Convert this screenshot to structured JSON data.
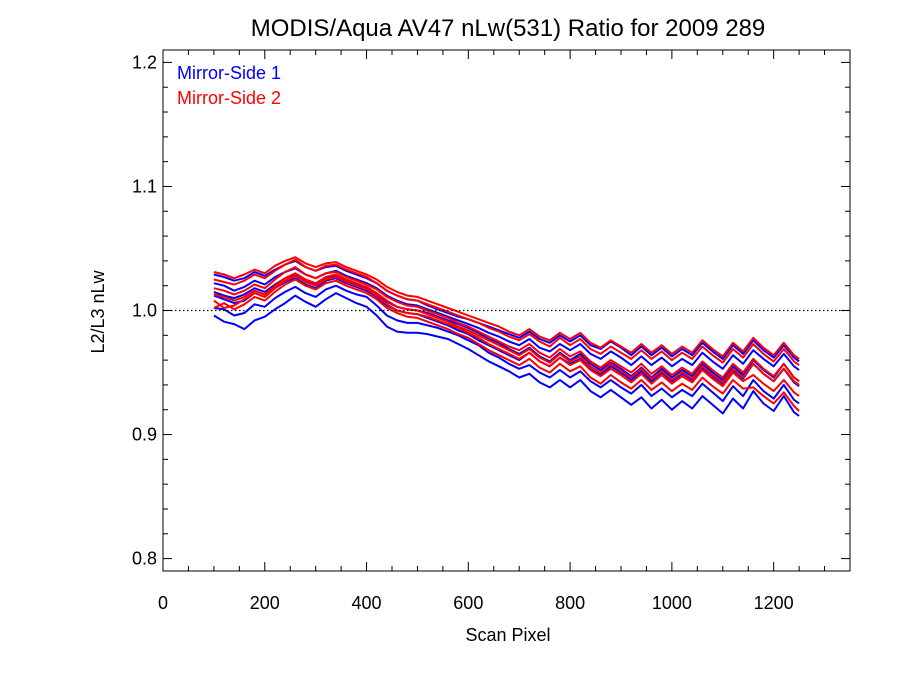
{
  "chart_data": {
    "type": "line",
    "title": "MODIS/Aqua AV47 nLw(531) Ratio for 2009 289",
    "xlabel": "Scan Pixel",
    "ylabel": "L2/L3 nLw",
    "xlim": [
      0,
      1350
    ],
    "ylim": [
      0.79,
      1.21
    ],
    "xticks": [
      0,
      200,
      400,
      600,
      800,
      1000,
      1200
    ],
    "xtick_labels": [
      "0",
      "200",
      "400",
      "600",
      "800",
      "1000",
      "1200"
    ],
    "yticks": [
      0.8,
      0.9,
      1.0,
      1.1,
      1.2
    ],
    "ytick_labels": [
      "0.8",
      "0.9",
      "1.0",
      "1.1",
      "1.2"
    ],
    "reference_line": 1.0,
    "grid": false,
    "legend_position": "top-left",
    "legend": [
      {
        "label": "Mirror-Side 1",
        "color": "#0000ff"
      },
      {
        "label": "Mirror-Side 2",
        "color": "#ff0000"
      }
    ],
    "x": [
      100,
      120,
      140,
      160,
      180,
      200,
      220,
      240,
      260,
      280,
      300,
      320,
      340,
      360,
      380,
      400,
      420,
      440,
      460,
      480,
      500,
      520,
      540,
      560,
      580,
      600,
      620,
      640,
      660,
      680,
      700,
      720,
      740,
      760,
      780,
      800,
      820,
      840,
      860,
      880,
      900,
      920,
      940,
      960,
      980,
      1000,
      1020,
      1040,
      1060,
      1080,
      1100,
      1120,
      1140,
      1160,
      1180,
      1200,
      1220,
      1240,
      1250
    ],
    "series": [
      {
        "group": "Mirror-Side 1",
        "color": "#0000ff",
        "values": [
          0.996,
          0.991,
          0.989,
          0.985,
          0.992,
          0.995,
          1.001,
          1.006,
          1.012,
          1.007,
          1.003,
          1.009,
          1.014,
          1.01,
          1.006,
          1.003,
          0.996,
          0.987,
          0.983,
          0.982,
          0.982,
          0.981,
          0.979,
          0.977,
          0.973,
          0.969,
          0.964,
          0.959,
          0.955,
          0.951,
          0.946,
          0.949,
          0.942,
          0.938,
          0.944,
          0.938,
          0.944,
          0.935,
          0.93,
          0.936,
          0.93,
          0.924,
          0.93,
          0.921,
          0.928,
          0.92,
          0.927,
          0.921,
          0.931,
          0.924,
          0.917,
          0.929,
          0.921,
          0.935,
          0.925,
          0.919,
          0.931,
          0.918,
          0.915
        ]
      },
      {
        "group": "Mirror-Side 1",
        "color": "#0000ff",
        "values": [
          1.002,
          1.001,
          0.996,
          0.998,
          1.005,
          1.003,
          1.01,
          1.015,
          1.019,
          1.014,
          1.011,
          1.017,
          1.02,
          1.016,
          1.013,
          1.011,
          1.004,
          0.996,
          0.992,
          0.99,
          0.99,
          0.988,
          0.986,
          0.983,
          0.98,
          0.976,
          0.972,
          0.966,
          0.962,
          0.957,
          0.953,
          0.956,
          0.95,
          0.946,
          0.952,
          0.946,
          0.951,
          0.943,
          0.938,
          0.944,
          0.938,
          0.933,
          0.94,
          0.931,
          0.937,
          0.93,
          0.936,
          0.931,
          0.941,
          0.934,
          0.927,
          0.939,
          0.931,
          0.944,
          0.935,
          0.929,
          0.94,
          0.928,
          0.925
        ]
      },
      {
        "group": "Mirror-Side 1",
        "color": "#0000ff",
        "values": [
          1.015,
          1.012,
          1.01,
          1.013,
          1.018,
          1.015,
          1.021,
          1.026,
          1.029,
          1.024,
          1.021,
          1.026,
          1.028,
          1.024,
          1.021,
          1.018,
          1.013,
          1.007,
          1.003,
          1.001,
          1.0,
          0.998,
          0.995,
          0.992,
          0.989,
          0.986,
          0.982,
          0.977,
          0.974,
          0.969,
          0.965,
          0.97,
          0.963,
          0.959,
          0.966,
          0.96,
          0.965,
          0.957,
          0.952,
          0.958,
          0.953,
          0.947,
          0.954,
          0.946,
          0.953,
          0.946,
          0.952,
          0.947,
          0.957,
          0.95,
          0.944,
          0.955,
          0.948,
          0.96,
          0.952,
          0.946,
          0.957,
          0.946,
          0.943
        ]
      },
      {
        "group": "Mirror-Side 1",
        "color": "#0000ff",
        "values": [
          1.022,
          1.02,
          1.016,
          1.019,
          1.024,
          1.021,
          1.027,
          1.031,
          1.034,
          1.029,
          1.026,
          1.03,
          1.032,
          1.028,
          1.025,
          1.022,
          1.018,
          1.012,
          1.008,
          1.005,
          1.004,
          1.001,
          0.998,
          0.995,
          0.992,
          0.989,
          0.986,
          0.982,
          0.979,
          0.975,
          0.972,
          0.977,
          0.97,
          0.967,
          0.973,
          0.968,
          0.973,
          0.965,
          0.961,
          0.967,
          0.962,
          0.956,
          0.963,
          0.956,
          0.962,
          0.955,
          0.961,
          0.956,
          0.966,
          0.959,
          0.953,
          0.964,
          0.957,
          0.968,
          0.961,
          0.955,
          0.965,
          0.955,
          0.952
        ]
      },
      {
        "group": "Mirror-Side 1",
        "color": "#0000ff",
        "values": [
          1.029,
          1.027,
          1.024,
          1.026,
          1.031,
          1.028,
          1.033,
          1.037,
          1.04,
          1.035,
          1.032,
          1.035,
          1.036,
          1.032,
          1.029,
          1.026,
          1.022,
          1.016,
          1.012,
          1.009,
          1.008,
          1.004,
          1.001,
          0.998,
          0.995,
          0.993,
          0.99,
          0.987,
          0.984,
          0.981,
          0.978,
          0.983,
          0.977,
          0.974,
          0.98,
          0.975,
          0.98,
          0.972,
          0.969,
          0.975,
          0.97,
          0.964,
          0.971,
          0.964,
          0.97,
          0.963,
          0.969,
          0.964,
          0.974,
          0.967,
          0.961,
          0.972,
          0.965,
          0.976,
          0.968,
          0.962,
          0.972,
          0.962,
          0.959
        ]
      },
      {
        "group": "Mirror-Side 1",
        "color": "#0000ff",
        "values": [
          1.012,
          1.009,
          1.006,
          1.008,
          1.014,
          1.011,
          1.018,
          1.023,
          1.026,
          1.021,
          1.018,
          1.024,
          1.026,
          1.022,
          1.019,
          1.016,
          1.011,
          1.004,
          1.0,
          0.998,
          0.997,
          0.994,
          0.991,
          0.988,
          0.984,
          0.981,
          0.976,
          0.972,
          0.968,
          0.964,
          0.96,
          0.966,
          0.959,
          0.955,
          0.962,
          0.957,
          0.961,
          0.953,
          0.948,
          0.955,
          0.95,
          0.944,
          0.951,
          0.943,
          0.95,
          0.943,
          0.949,
          0.944,
          0.954,
          0.947,
          0.941,
          0.952,
          0.945,
          0.957,
          0.949,
          0.943,
          0.953,
          0.942,
          0.939
        ]
      },
      {
        "group": "Mirror-Side 2",
        "color": "#ff0000",
        "values": [
          1.008,
          1.002,
          1.004,
          1.009,
          1.014,
          1.011,
          1.018,
          1.024,
          1.028,
          1.023,
          1.02,
          1.025,
          1.027,
          1.023,
          1.02,
          1.017,
          1.012,
          1.005,
          1.0,
          0.998,
          0.997,
          0.995,
          0.992,
          0.989,
          0.986,
          0.982,
          0.978,
          0.973,
          0.969,
          0.965,
          0.961,
          0.966,
          0.959,
          0.955,
          0.962,
          0.956,
          0.96,
          0.952,
          0.947,
          0.953,
          0.948,
          0.942,
          0.949,
          0.941,
          0.948,
          0.941,
          0.947,
          0.942,
          0.952,
          0.945,
          0.939,
          0.95,
          0.943,
          0.948,
          0.941,
          0.935,
          0.944,
          0.934,
          0.931
        ]
      },
      {
        "group": "Mirror-Side 2",
        "color": "#ff0000",
        "values": [
          1.018,
          1.016,
          1.013,
          1.016,
          1.021,
          1.018,
          1.025,
          1.031,
          1.035,
          1.029,
          1.026,
          1.03,
          1.031,
          1.027,
          1.024,
          1.021,
          1.017,
          1.011,
          1.007,
          1.004,
          1.003,
          1.0,
          0.997,
          0.994,
          0.99,
          0.987,
          0.983,
          0.979,
          0.975,
          0.971,
          0.968,
          0.973,
          0.966,
          0.962,
          0.969,
          0.963,
          0.967,
          0.959,
          0.954,
          0.96,
          0.955,
          0.95,
          0.957,
          0.949,
          0.955,
          0.948,
          0.954,
          0.949,
          0.959,
          0.952,
          0.946,
          0.957,
          0.95,
          0.961,
          0.953,
          0.947,
          0.957,
          0.946,
          0.943
        ]
      },
      {
        "group": "Mirror-Side 2",
        "color": "#ff0000",
        "values": [
          1.025,
          1.023,
          1.021,
          1.024,
          1.029,
          1.026,
          1.032,
          1.037,
          1.041,
          1.035,
          1.032,
          1.036,
          1.037,
          1.033,
          1.03,
          1.027,
          1.022,
          1.016,
          1.012,
          1.009,
          1.008,
          1.005,
          1.002,
          0.999,
          0.996,
          0.993,
          0.99,
          0.986,
          0.983,
          0.979,
          0.976,
          0.981,
          0.975,
          0.971,
          0.978,
          0.972,
          0.977,
          0.969,
          0.965,
          0.971,
          0.966,
          0.961,
          0.968,
          0.961,
          0.967,
          0.96,
          0.966,
          0.961,
          0.971,
          0.964,
          0.958,
          0.969,
          0.962,
          0.973,
          0.965,
          0.959,
          0.969,
          0.959,
          0.956
        ]
      },
      {
        "group": "Mirror-Side 2",
        "color": "#ff0000",
        "values": [
          1.031,
          1.029,
          1.026,
          1.029,
          1.033,
          1.03,
          1.036,
          1.04,
          1.043,
          1.038,
          1.035,
          1.038,
          1.039,
          1.035,
          1.032,
          1.029,
          1.025,
          1.019,
          1.015,
          1.012,
          1.011,
          1.008,
          1.005,
          1.002,
          0.999,
          0.996,
          0.993,
          0.99,
          0.987,
          0.983,
          0.98,
          0.985,
          0.979,
          0.976,
          0.982,
          0.977,
          0.982,
          0.974,
          0.97,
          0.976,
          0.971,
          0.966,
          0.973,
          0.966,
          0.972,
          0.965,
          0.971,
          0.966,
          0.976,
          0.969,
          0.963,
          0.974,
          0.967,
          0.978,
          0.97,
          0.964,
          0.974,
          0.964,
          0.961
        ]
      },
      {
        "group": "Mirror-Side 2",
        "color": "#ff0000",
        "values": [
          1.013,
          1.011,
          1.008,
          1.011,
          1.016,
          1.013,
          1.02,
          1.026,
          1.03,
          1.025,
          1.022,
          1.027,
          1.029,
          1.025,
          1.022,
          1.019,
          1.014,
          1.008,
          1.003,
          1.001,
          1.0,
          0.997,
          0.994,
          0.991,
          0.987,
          0.984,
          0.98,
          0.976,
          0.972,
          0.968,
          0.964,
          0.969,
          0.962,
          0.958,
          0.965,
          0.959,
          0.963,
          0.955,
          0.95,
          0.957,
          0.951,
          0.946,
          0.953,
          0.945,
          0.951,
          0.944,
          0.95,
          0.945,
          0.955,
          0.948,
          0.942,
          0.953,
          0.946,
          0.957,
          0.949,
          0.943,
          0.953,
          0.943,
          0.94
        ]
      },
      {
        "group": "Mirror-Side 2",
        "color": "#ff0000",
        "values": [
          1.002,
          1.006,
          1.001,
          1.005,
          1.011,
          1.008,
          1.015,
          1.021,
          1.025,
          1.02,
          1.017,
          1.022,
          1.024,
          1.02,
          1.017,
          1.014,
          1.009,
          1.002,
          0.998,
          0.995,
          0.994,
          0.991,
          0.988,
          0.985,
          0.981,
          0.978,
          0.973,
          0.968,
          0.964,
          0.96,
          0.956,
          0.961,
          0.954,
          0.95,
          0.957,
          0.951,
          0.955,
          0.946,
          0.941,
          0.948,
          0.942,
          0.937,
          0.944,
          0.936,
          0.942,
          0.935,
          0.941,
          0.936,
          0.946,
          0.939,
          0.933,
          0.944,
          0.937,
          0.938,
          0.931,
          0.925,
          0.934,
          0.923,
          0.919
        ]
      }
    ]
  }
}
